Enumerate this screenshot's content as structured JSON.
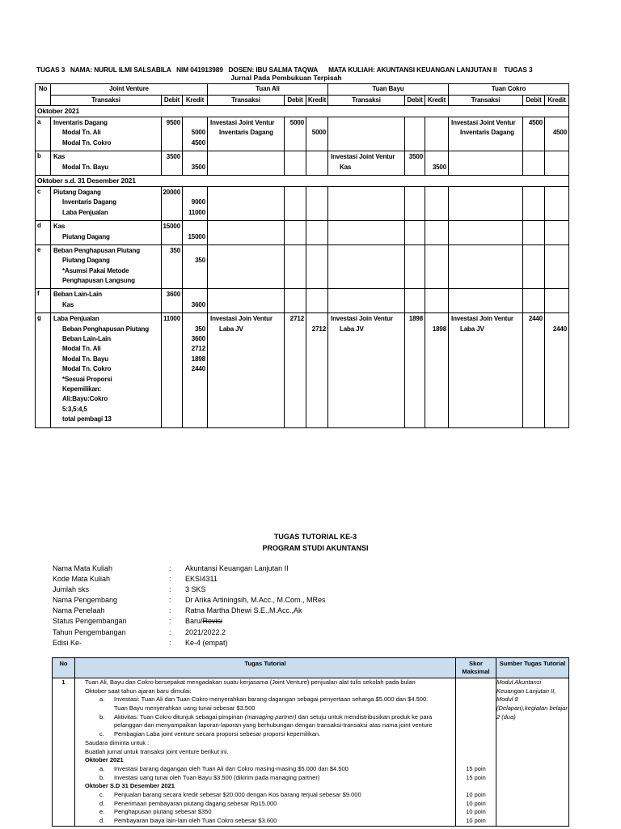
{
  "doc": {
    "header_line": "TUGAS 3   NAMA: NURUL ILMI SALSABILA   NIM 041913989   DOSEN: IBU SALMA TAQWA      MATA KULIAH: AKUNTANSI KEUANGAN LANJUTAN II    TUGAS 3",
    "subtitle": "Jurnal Pada Pembukuan Terpisah"
  },
  "journal": {
    "no_header": "No",
    "groups": [
      "Joint Venture",
      "Tuan Ali",
      "Tuan Bayu",
      "Tuan Cokro"
    ],
    "sub_headers": [
      "Transaksi",
      "Debit",
      "Kredit"
    ],
    "sections": [
      {
        "label": "Oktober 2021",
        "rows": [
          {
            "no": "a",
            "cells": [
              {
                "lines": [
                  {
                    "t": "Inventaris Dagang",
                    "d": "9500"
                  },
                  {
                    "t": "Modal Tn. Ali",
                    "ind": 1,
                    "k": "5000"
                  },
                  {
                    "t": "Modal Tn. Cokro",
                    "ind": 1,
                    "k": "4500"
                  }
                ]
              },
              {
                "lines": [
                  {
                    "t": "Investasi Joint Ventur",
                    "d": "5000"
                  },
                  {
                    "t": "Inventaris Dagang",
                    "ind": 1,
                    "k": "5000"
                  }
                ]
              },
              {
                "lines": []
              },
              {
                "lines": [
                  {
                    "t": "Investasi Joint Ventur",
                    "d": "4500"
                  },
                  {
                    "t": "Inventaris Dagang",
                    "ind": 1,
                    "k": "4500"
                  }
                ]
              }
            ]
          },
          {
            "no": "b",
            "cells": [
              {
                "lines": [
                  {
                    "t": "Kas",
                    "d": "3500"
                  },
                  {
                    "t": "Modal Tn. Bayu",
                    "ind": 1,
                    "k": "3500"
                  }
                ]
              },
              {
                "lines": []
              },
              {
                "lines": [
                  {
                    "t": "Investasi Joint Ventur",
                    "d": "3500"
                  },
                  {
                    "t": "Kas",
                    "ind": 1,
                    "k": "3500"
                  }
                ]
              },
              {
                "lines": []
              }
            ]
          }
        ]
      },
      {
        "label": "Oktober s.d. 31 Desember 2021",
        "rows": [
          {
            "no": "c",
            "cells": [
              {
                "lines": [
                  {
                    "t": "Piutang Dagang",
                    "d": "20000"
                  },
                  {
                    "t": "Inventaris Dagang",
                    "ind": 1,
                    "k": "9000"
                  },
                  {
                    "t": "Laba Penjualan",
                    "ind": 1,
                    "k": "11000"
                  }
                ]
              },
              {
                "lines": []
              },
              {
                "lines": []
              },
              {
                "lines": []
              }
            ]
          },
          {
            "no": "d",
            "cells": [
              {
                "lines": [
                  {
                    "t": "Kas",
                    "d": "15000"
                  },
                  {
                    "t": "Piutang Dagang",
                    "ind": 1,
                    "k": "15000"
                  }
                ]
              },
              {
                "lines": []
              },
              {
                "lines": []
              },
              {
                "lines": []
              }
            ]
          },
          {
            "no": "e",
            "cells": [
              {
                "lines": [
                  {
                    "t": "Beban Penghapusan Piutang",
                    "d": "350"
                  },
                  {
                    "t": "Piutang Dagang",
                    "ind": 1,
                    "k": "350"
                  },
                  {
                    "t": "*Asumsi Pakai Metode",
                    "ind": 1
                  },
                  {
                    "t": "Penghapusan Langsung",
                    "ind": 1
                  }
                ]
              },
              {
                "lines": []
              },
              {
                "lines": []
              },
              {
                "lines": []
              }
            ]
          },
          {
            "no": "f",
            "cells": [
              {
                "lines": [
                  {
                    "t": "Beban Lain-Lain",
                    "d": "3600"
                  },
                  {
                    "t": "Kas",
                    "ind": 1,
                    "k": "3600"
                  }
                ]
              },
              {
                "lines": []
              },
              {
                "lines": []
              },
              {
                "lines": []
              }
            ]
          },
          {
            "no": "g",
            "cells": [
              {
                "lines": [
                  {
                    "t": "Laba Penjualan",
                    "d": "11000"
                  },
                  {
                    "t": "Beban Penghapusan Piutang",
                    "ind": 1,
                    "k": "350"
                  },
                  {
                    "t": "Beban Lain-Lain",
                    "ind": 1,
                    "k": "3600"
                  },
                  {
                    "t": "Modal Tn. Ali",
                    "ind": 1,
                    "k": "2712"
                  },
                  {
                    "t": "Modal Tn. Bayu",
                    "ind": 1,
                    "k": "1898"
                  },
                  {
                    "t": "Modal Tn. Cokro",
                    "ind": 1,
                    "k": "2440"
                  },
                  {
                    "t": "*Sesuai Proporsi",
                    "ind": 1
                  },
                  {
                    "t": "Kepemilikan:",
                    "ind": 1
                  },
                  {
                    "t": "Ali:Bayu:Cokro",
                    "ind": 1
                  },
                  {
                    "t": "5:3,5:4,5",
                    "ind": 1
                  },
                  {
                    "t": "total pembagi 13",
                    "ind": 1
                  }
                ]
              },
              {
                "lines": [
                  {
                    "t": "Investasi Join Ventur",
                    "d": "2712"
                  },
                  {
                    "t": "Laba JV",
                    "ind": 1,
                    "k": "2712"
                  }
                ]
              },
              {
                "lines": [
                  {
                    "t": "Investasi Join Ventur",
                    "d": "1898"
                  },
                  {
                    "t": "Laba JV",
                    "ind": 1,
                    "k": "1898"
                  }
                ]
              },
              {
                "lines": [
                  {
                    "t": "Investasi Join Ventur",
                    "d": "2440"
                  },
                  {
                    "t": "Laba JV",
                    "ind": 1,
                    "k": "2440"
                  }
                ]
              }
            ]
          }
        ]
      }
    ]
  },
  "tutorial": {
    "title1": "TUGAS TUTORIAL  KE-3",
    "title2": "PROGRAM STUDI AKUNTANSI",
    "colon": ":",
    "info_rows": [
      {
        "label": "Nama Mata Kuliah",
        "value": "Akuntansi Keuangan Lanjutan II"
      },
      {
        "label": "Kode Mata Kuliah",
        "value": "EKSI4311"
      },
      {
        "label": "Jumlah sks",
        "value": "3 SKS"
      },
      {
        "label": "Nama Pengembang",
        "value": "Dr Arika Artiningsih, M.Acc., M.Com., MRes"
      },
      {
        "label": "Nama Penelaah",
        "value": "Ratna Martha Dhewi S.E.,M.Acc.,Ak"
      },
      {
        "label": "Status Pengembangan",
        "value": "Baru/",
        "value_struck": "Revisi"
      },
      {
        "label": "Tahun Pengembangan",
        "value": "2021/2022.2"
      },
      {
        "label": "Edisi Ke-",
        "value": "Ke-4 (empat)"
      }
    ]
  },
  "task_table": {
    "headers": {
      "no": "No",
      "task": "Tugas Tutorial",
      "score": "Skor Maksimal",
      "source": "Sumber Tugas Tutorial"
    },
    "row_no": "1",
    "lines": [
      {
        "ind": 0,
        "text": "Tuan Ali, Bayu dan Cokro bersepakat mengadakan suatu kerjasama (Joint Venture) penjualan alat tulis sekolah pada bulan"
      },
      {
        "ind": 0,
        "text": "Oktober saat tahun ajaran baru dimulai:"
      },
      {
        "ind": 1,
        "letter": "a.",
        "text": "Investasi: Tuan Ali dan Tuan Cokro menyerahkan barang dagangan sebagai penyertaan seharga $5.000 dan $4.500."
      },
      {
        "ind": 2,
        "text": "Tuan Bayu menyerahkan uang tunai sebesar $3.500"
      },
      {
        "ind": 1,
        "letter": "b.",
        "parts": [
          {
            "t": "Aktivitas: Tuan Cokro ditunjuk sebagai pimpinan "
          },
          {
            "t": "(managing partner)",
            "i": 1
          },
          {
            "t": " dan setuju untuk mendistribusikan produk ke para"
          }
        ]
      },
      {
        "ind": 2,
        "text": "pelanggan dan menyampaikan laporan-laporan yang berhubungan dengan transaksi-transaksi atas nama joint venture"
      },
      {
        "ind": 1,
        "letter": "c.",
        "text": "Pembagian Laba joint venture secara proporsi sebesar proporsi kepemilikan."
      },
      {
        "ind": 0,
        "text": "Saudara diminta untuk :"
      },
      {
        "ind": 0,
        "text": "Buatlah jurnal untuk transaksi joint venture berikut ini."
      },
      {
        "ind": 0,
        "bold": 1,
        "text": "Oktober 2021"
      },
      {
        "ind": 1,
        "letter": "a.",
        "text": "Investasi barang dagangan oleh Tuan Ali dan Cokro masing-masing $5.000 dan $4.500",
        "score": "15 poin"
      },
      {
        "ind": 1,
        "letter": "b.",
        "text": "Investasi uang tunai oleh Tuan Bayu $3.500 (dikirim pada managing partner)",
        "score": "15 poin"
      },
      {
        "ind": 0,
        "bold": 1,
        "text": "Oktober S.D 31 Desember 2021"
      },
      {
        "ind": 1,
        "letter": "c.",
        "text": "Penjualan barang secara kredit sebesar $20.000 dengan Kos barang terjual sebesar $9.000",
        "score": "10 poin"
      },
      {
        "ind": 1,
        "letter": "d.",
        "text": "Penerimaan pembayaran piutang dagang sebesar Rp15.000",
        "score": "10 poin"
      },
      {
        "ind": 1,
        "letter": "e.",
        "text": "Penghapusan piutang sebesar $350",
        "score": "10 poin"
      },
      {
        "ind": 1,
        "letter": "d.",
        "text": "Pembayaran biaya lain-lain oleh Tuan Cokro sebesar $3.600",
        "score": "10 poin"
      }
    ],
    "source": "Modul Akuntansi Keuangan Lanjutan II, Modul 8 (Delapan),kegiatan belajar 2 (dua)",
    "header_bg": "#cbdeef"
  }
}
